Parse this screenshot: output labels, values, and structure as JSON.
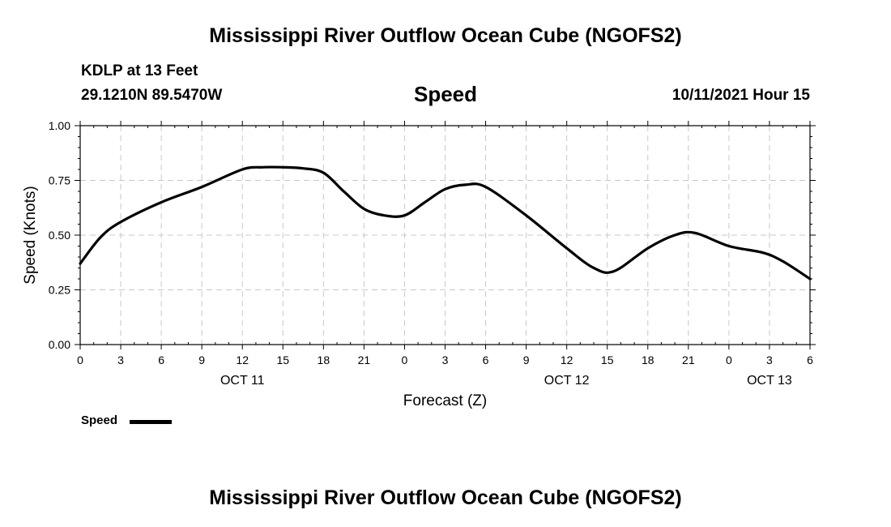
{
  "header": {
    "title": "Mississippi River Outflow Ocean Cube (NGOFS2)",
    "station": "KDLP at 13 Feet",
    "coords": "29.1210N  89.5470W",
    "variable": "Speed",
    "run": "10/11/2021 Hour 15"
  },
  "footer": {
    "title": "Mississippi River Outflow Ocean Cube (NGOFS2)"
  },
  "legend": {
    "label": "Speed",
    "color": "#000000"
  },
  "chart_data": {
    "type": "line",
    "title": "Speed",
    "xlabel": "Forecast (Z)",
    "ylabel": "Speed (Knots)",
    "ylim": [
      0,
      1.0
    ],
    "xlim": [
      0,
      54
    ],
    "grid": true,
    "legend_position": "bottom-left",
    "x_ticks": [
      {
        "x": 0,
        "label": "0"
      },
      {
        "x": 3,
        "label": "3"
      },
      {
        "x": 6,
        "label": "6"
      },
      {
        "x": 9,
        "label": "9"
      },
      {
        "x": 12,
        "label": "12"
      },
      {
        "x": 15,
        "label": "15"
      },
      {
        "x": 18,
        "label": "18"
      },
      {
        "x": 21,
        "label": "21"
      },
      {
        "x": 24,
        "label": "0"
      },
      {
        "x": 27,
        "label": "3"
      },
      {
        "x": 30,
        "label": "6"
      },
      {
        "x": 33,
        "label": "9"
      },
      {
        "x": 36,
        "label": "12"
      },
      {
        "x": 39,
        "label": "15"
      },
      {
        "x": 42,
        "label": "18"
      },
      {
        "x": 45,
        "label": "21"
      },
      {
        "x": 48,
        "label": "0"
      },
      {
        "x": 51,
        "label": "3"
      },
      {
        "x": 54,
        "label": "6"
      }
    ],
    "date_labels": [
      {
        "x": 12,
        "label": "OCT 11"
      },
      {
        "x": 36,
        "label": "OCT 12"
      },
      {
        "x": 51,
        "label": "OCT 13"
      }
    ],
    "y_ticks": [
      {
        "y": 0.0,
        "label": "0.00"
      },
      {
        "y": 0.25,
        "label": "0.25"
      },
      {
        "y": 0.5,
        "label": "0.50"
      },
      {
        "y": 0.75,
        "label": "0.75"
      },
      {
        "y": 1.0,
        "label": "1.00"
      }
    ],
    "series": [
      {
        "name": "Speed",
        "color": "#000000",
        "x": [
          0,
          1.5,
          3,
          6,
          9,
          12,
          13.5,
          15,
          16.5,
          18,
          19.5,
          21,
          22.5,
          24,
          25.5,
          27,
          28.5,
          30,
          33,
          36,
          38,
          39.5,
          42,
          44,
          45.5,
          48,
          50.5,
          52,
          54
        ],
        "y": [
          0.37,
          0.49,
          0.56,
          0.65,
          0.72,
          0.8,
          0.81,
          0.81,
          0.805,
          0.785,
          0.7,
          0.62,
          0.59,
          0.59,
          0.65,
          0.71,
          0.73,
          0.72,
          0.59,
          0.44,
          0.35,
          0.335,
          0.44,
          0.5,
          0.51,
          0.45,
          0.42,
          0.38,
          0.3
        ]
      }
    ]
  }
}
